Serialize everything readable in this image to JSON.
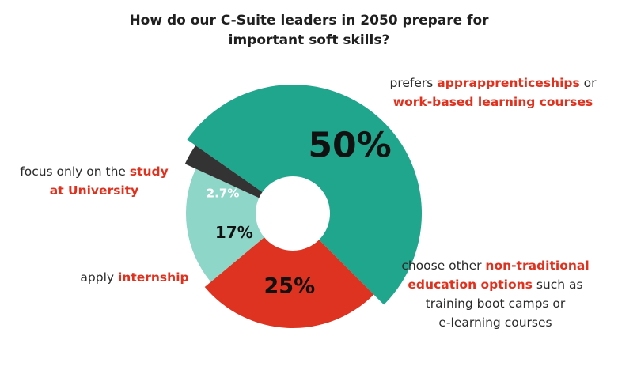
{
  "chart_data": {
    "type": "pie",
    "title_lines": [
      "How do our C-Suite leaders in 2050 prepare for",
      "important soft skills?"
    ],
    "segments": [
      {
        "key": "work_based",
        "value": 50,
        "value_label": "50%",
        "color": "#1fa68d",
        "label_color": "#111111"
      },
      {
        "key": "non_traditional",
        "value": 25,
        "value_label": "25%",
        "color": "#dd3320",
        "label_color": "#111111"
      },
      {
        "key": "internship",
        "value": 17,
        "value_label": "17%",
        "color": "#8dd6c8",
        "label_color": "#111111"
      },
      {
        "key": "university",
        "value": 2.7,
        "value_label": "2.7%",
        "color": "#333333",
        "label_color": "#ffffff"
      }
    ]
  },
  "labels": {
    "work_based": {
      "line1_pre": "prefers ",
      "line1_hl": "apprapprenticeships",
      "line1_post": " or",
      "line2_hl": "work-based learning courses"
    },
    "university": {
      "line1_pre": "focus only on the ",
      "line1_hl": "study",
      "line2_hl": "at University"
    },
    "internship": {
      "line1_pre": "apply ",
      "line1_hl": "internship"
    },
    "non_traditional": {
      "line1_pre": "choose other ",
      "line1_hl": "non-traditional",
      "line2_hl": "education options",
      "line2_post": " such as",
      "line3": "training boot camps or",
      "line4": "e-learning courses"
    }
  },
  "colors": {
    "highlight": "#e0311e",
    "text": "#2a2a2a"
  }
}
